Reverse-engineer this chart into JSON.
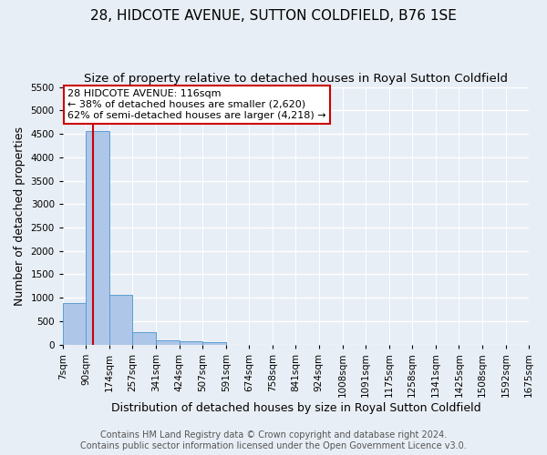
{
  "title": "28, HIDCOTE AVENUE, SUTTON COLDFIELD, B76 1SE",
  "subtitle": "Size of property relative to detached houses in Royal Sutton Coldfield",
  "xlabel": "Distribution of detached houses by size in Royal Sutton Coldfield",
  "ylabel": "Number of detached properties",
  "footer_line1": "Contains HM Land Registry data © Crown copyright and database right 2024.",
  "footer_line2": "Contains public sector information licensed under the Open Government Licence v3.0.",
  "annotation_title": "28 HIDCOTE AVENUE: 116sqm",
  "annotation_line1": "← 38% of detached houses are smaller (2,620)",
  "annotation_line2": "62% of semi-detached houses are larger (4,218) →",
  "property_size": 116,
  "bin_edges": [
    7,
    90,
    174,
    257,
    341,
    424,
    507,
    591,
    674,
    758,
    841,
    924,
    1008,
    1091,
    1175,
    1258,
    1341,
    1425,
    1508,
    1592,
    1675
  ],
  "bar_heights": [
    880,
    4550,
    1060,
    275,
    90,
    80,
    50,
    0,
    0,
    0,
    0,
    0,
    0,
    0,
    0,
    0,
    0,
    0,
    0,
    0
  ],
  "bar_color": "#aec6e8",
  "bar_edge_color": "#5a9fd4",
  "vline_color": "#cc0000",
  "vline_x": 116,
  "ylim": [
    0,
    5500
  ],
  "yticks": [
    0,
    500,
    1000,
    1500,
    2000,
    2500,
    3000,
    3500,
    4000,
    4500,
    5000,
    5500
  ],
  "background_color": "#e8eef5",
  "grid_color": "#ffffff",
  "annotation_box_color": "#ffffff",
  "annotation_box_edge": "#cc0000",
  "title_fontsize": 11,
  "subtitle_fontsize": 9.5,
  "xlabel_fontsize": 9,
  "ylabel_fontsize": 9,
  "tick_fontsize": 7.5,
  "footer_fontsize": 7
}
